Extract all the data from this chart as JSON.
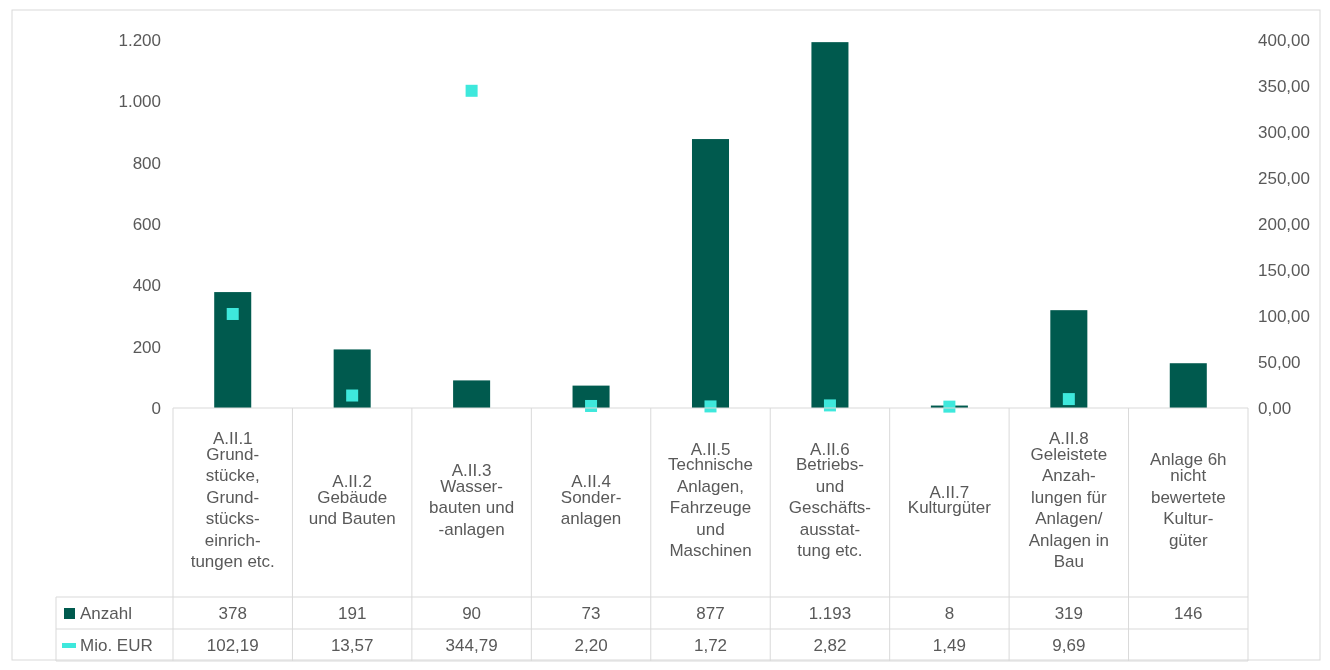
{
  "chart_data": {
    "type": "bar",
    "categories": [
      "A.II.1\nGrund-\nstücke,\nGrund-\nstücks-\neinrich-\ntungen etc.",
      "A.II.2\nGebäude\nund Bauten",
      "A.II.3\nWasser-\nbauten und\n-anlagen",
      "A.II.4\nSonder-\nanlagen",
      "A.II.5\nTechnische\nAnlagen,\nFahrzeuge\nund\nMaschinen",
      "A.II.6\nBetriebs-\nund\nGeschäfts-\nausstat-\ntung etc.",
      "A.II.7\nKulturgüter",
      "A.II.8\nGeleistete\nAnzah-\nlungen für\nAnlagen/\nAnlagen in\nBau",
      "Anlage 6h\nnicht\nbewertete\nKultur-\ngüter"
    ],
    "series": [
      {
        "name": "Anzahl",
        "color": "#005a4e",
        "values": [
          378,
          191,
          90,
          73,
          877,
          1193,
          8,
          319,
          146
        ],
        "value_labels": [
          "378",
          "191",
          "90",
          "73",
          "877",
          "1.193",
          "8",
          "319",
          "146"
        ]
      },
      {
        "name": "Mio. EUR",
        "type": "scatter",
        "axis": "y2",
        "marker": "square",
        "color": "#3ee8dc",
        "values": [
          102.19,
          13.57,
          344.79,
          2.2,
          1.72,
          2.82,
          1.49,
          9.69,
          null
        ],
        "value_labels": [
          "102,19",
          "13,57",
          "344,79",
          "2,20",
          "1,72",
          "2,82",
          "1,49",
          "9,69",
          null
        ]
      }
    ],
    "ylim": [
      0,
      1200
    ],
    "yticks": [
      0,
      200,
      400,
      600,
      800,
      {
        "value": 1000,
        "label": "1.000"
      },
      {
        "value": 1200,
        "label": "1.200"
      }
    ],
    "y2lim": [
      0,
      400
    ],
    "y2ticks": [
      {
        "value": 0,
        "label": "0,00"
      },
      {
        "value": 50,
        "label": "50,00"
      },
      {
        "value": 100,
        "label": "100,00"
      },
      {
        "value": 150,
        "label": "150,00"
      },
      {
        "value": 200,
        "label": "200,00"
      },
      {
        "value": 250,
        "label": "250,00"
      },
      {
        "value": 300,
        "label": "300,00"
      },
      {
        "value": 350,
        "label": "350,00"
      },
      {
        "value": 400,
        "label": "400,00"
      }
    ],
    "legend": "bottom"
  }
}
